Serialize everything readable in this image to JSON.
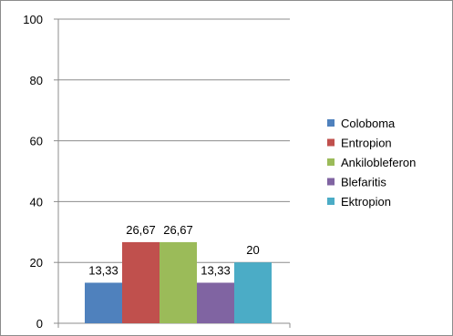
{
  "chart_data": {
    "type": "bar",
    "title": "",
    "xlabel": "",
    "ylabel": "",
    "ylim": [
      0,
      100
    ],
    "yticks": [
      0,
      20,
      40,
      60,
      80,
      100
    ],
    "grid": true,
    "legend_position": "right",
    "series": [
      {
        "name": "Coloboma",
        "value": 13.33,
        "label": "13,33",
        "color": "#4f81bd"
      },
      {
        "name": "Entropion",
        "value": 26.67,
        "label": "26,67",
        "color": "#c0504d"
      },
      {
        "name": "Ankilobleferon",
        "value": 26.67,
        "label": "26,67",
        "color": "#9bbb59"
      },
      {
        "name": "Blefaritis",
        "value": 13.33,
        "label": "13,33",
        "color": "#8064a2"
      },
      {
        "name": "Ektropion",
        "value": 20,
        "label": "20",
        "color": "#4bacc6"
      }
    ]
  }
}
